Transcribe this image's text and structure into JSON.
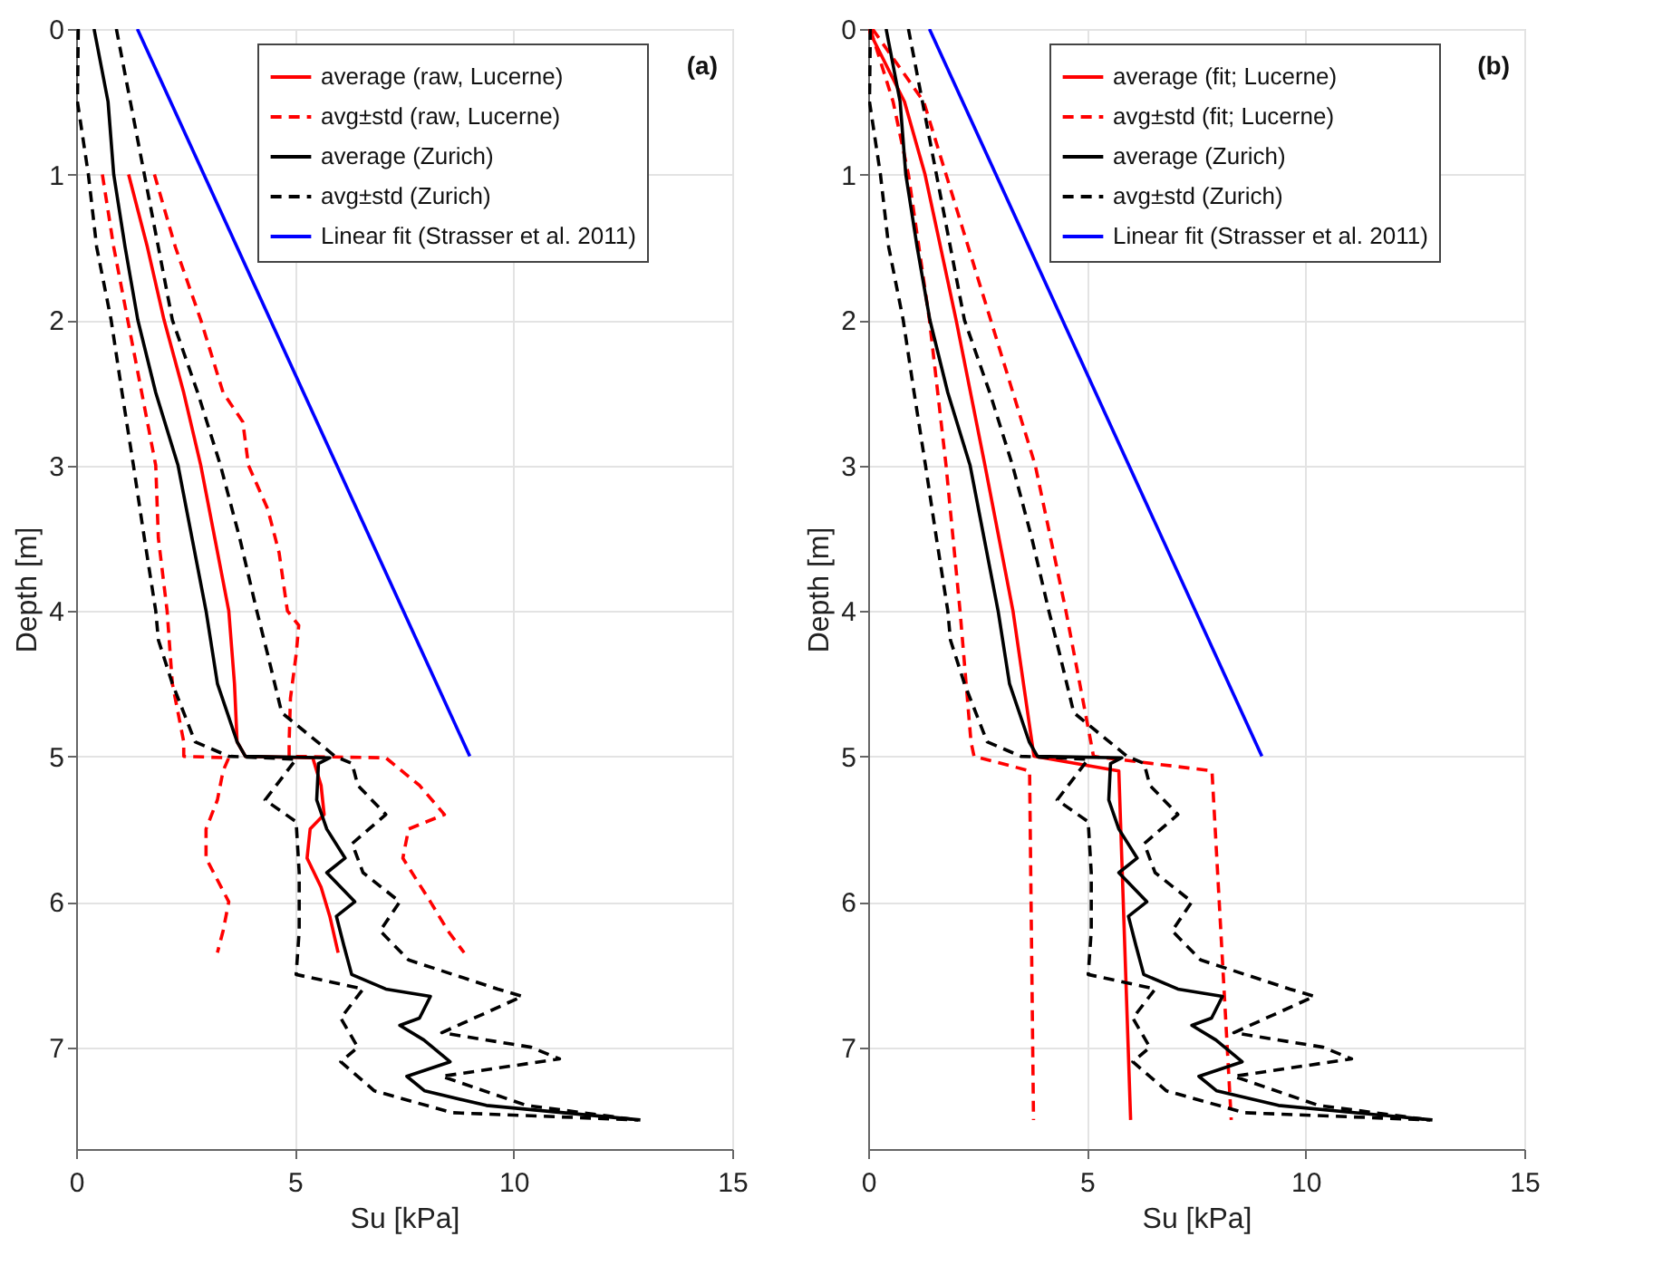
{
  "chart_data": [
    {
      "type": "line",
      "xlabel": "Su [kPa]",
      "ylabel": "Depth [m]",
      "xlim": [
        0,
        15
      ],
      "xticks": [
        0,
        5,
        10,
        15
      ],
      "ylim": [
        7.7,
        0
      ],
      "yticks": [
        0,
        1,
        2,
        3,
        4,
        5,
        6,
        7
      ],
      "grid": true,
      "legend": "top right",
      "annotations": [
        "(a)"
      ],
      "series": [
        {
          "name": "average (raw, Lucerne)",
          "color": "#ff0000",
          "line_style": "solid",
          "x": [
            1.2,
            1.63,
            2.01,
            2.46,
            2.85,
            3.17,
            3.49,
            3.62,
            3.68,
            3.87,
            5.41,
            5.6,
            5.67,
            5.35,
            5.28,
            5.6,
            5.8,
            5.99
          ],
          "values": [
            1,
            1.5,
            2,
            2.5,
            3,
            3.5,
            4,
            4.5,
            4.9,
            5.0,
            5.01,
            5.2,
            5.4,
            5.5,
            5.7,
            5.9,
            6.1,
            6.35
          ]
        },
        {
          "name": "avg±std (raw, Lucerne)",
          "color": "#ff0000",
          "line_style": "dashed",
          "x": [
            0.6,
            0.86,
            1.18,
            1.5,
            1.82,
            1.88,
            2.08,
            2.2,
            2.46,
            2.46,
            3.49,
            3.36,
            3.23,
            2.97,
            2.97,
            3.23,
            3.49,
            3.36,
            3.23,
            null,
            1.79,
            2.27,
            2.85,
            3.36,
            3.81,
            3.94,
            4.38,
            4.64,
            4.83,
            5.09,
            5.03,
            4.9,
            4.87,
            4.87,
            7.08,
            7.85,
            8.42,
            7.6,
            7.47,
            8.1,
            8.5,
            8.87
          ],
          "values": [
            1,
            1.5,
            2,
            2.5,
            3,
            3.5,
            4,
            4.5,
            4.9,
            5.0,
            5.01,
            5.1,
            5.3,
            5.5,
            5.7,
            5.85,
            6.0,
            6.2,
            6.35,
            null,
            1,
            1.5,
            2,
            2.5,
            2.7,
            3,
            3.3,
            3.6,
            4,
            4.1,
            4.3,
            4.6,
            4.9,
            5.0,
            5.01,
            5.2,
            5.4,
            5.5,
            5.7,
            6.0,
            6.2,
            6.35
          ]
        },
        {
          "name": "average (Zurich)",
          "color": "#000000",
          "line_style": "solid",
          "x": [
            0.41,
            0.73,
            0.86,
            1.12,
            1.41,
            1.82,
            2.33,
            2.65,
            2.97,
            3.23,
            3.68,
            3.87,
            5.8,
            5.54,
            5.5,
            5.73,
            6.15,
            5.73,
            6.37,
            5.95,
            6.12,
            6.3,
            7.08,
            8.1,
            7.85,
            7.4,
            7.95,
            8.55,
            7.56,
            7.97,
            9.38,
            12.9
          ],
          "values": [
            0,
            0.5,
            1,
            1.5,
            2,
            2.5,
            3,
            3.5,
            4,
            4.5,
            4.9,
            5.0,
            5.01,
            5.05,
            5.3,
            5.5,
            5.7,
            5.8,
            6.0,
            6.1,
            6.3,
            6.5,
            6.6,
            6.65,
            6.8,
            6.85,
            6.95,
            7.1,
            7.2,
            7.3,
            7.4,
            7.5
          ]
        },
        {
          "name": "avg±std (Zurich)",
          "color": "#000000",
          "line_style": "dashed",
          "x": [
            0.05,
            0.03,
            0.28,
            0.47,
            0.8,
            1.05,
            1.31,
            1.56,
            1.82,
            1.88,
            2.2,
            2.72,
            3.49,
            5.03,
            4.32,
            5.03,
            5.1,
            5.1,
            5.03,
            6.56,
            6.05,
            6.44,
            6.05,
            6.82,
            8.6,
            12.85,
            null,
            0.92,
            1.24,
            1.56,
            1.88,
            2.2,
            2.78,
            3.3,
            3.74,
            4.13,
            4.38,
            4.7,
            5.92,
            6.31,
            6.44,
            7.08,
            6.31,
            6.56,
            7.4,
            6.95,
            7.6,
            9.64,
            10.2,
            8.36,
            10.4,
            11.05,
            8.36,
            10.3,
            12.85
          ],
          "values": [
            0,
            0.5,
            1,
            1.5,
            2,
            2.5,
            3,
            3.5,
            4,
            4.2,
            4.5,
            4.9,
            5.0,
            5.02,
            5.3,
            5.45,
            5.8,
            6.2,
            6.5,
            6.6,
            6.8,
            7.0,
            7.1,
            7.3,
            7.45,
            7.5,
            null,
            0,
            0.5,
            1,
            1.5,
            2,
            2.5,
            3,
            3.5,
            4,
            4.3,
            4.7,
            5.0,
            5.05,
            5.2,
            5.4,
            5.6,
            5.8,
            6.0,
            6.2,
            6.4,
            6.6,
            6.65,
            6.9,
            7.0,
            7.08,
            7.2,
            7.4,
            7.5
          ]
        },
        {
          "name": "Linear fit (Strasser et al. 2011)",
          "color": "#0000ff",
          "line_style": "solid",
          "x": [
            1.4,
            9.0
          ],
          "values": [
            0,
            5
          ]
        }
      ]
    },
    {
      "type": "line",
      "xlabel": "Su [kPa]",
      "ylabel": "Depth [m]",
      "xlim": [
        0,
        15
      ],
      "xticks": [
        0,
        5,
        10,
        15
      ],
      "ylim": [
        7.7,
        0
      ],
      "yticks": [
        0,
        1,
        2,
        3,
        4,
        5,
        6,
        7
      ],
      "grid": true,
      "legend": "top right",
      "annotations": [
        "(b)"
      ],
      "series": [
        {
          "name": "average (fit; Lucerne)",
          "color": "#ff0000",
          "line_style": "solid",
          "x": [
            0,
            0.83,
            1.3,
            2.01,
            2.67,
            3.31,
            3.79,
            5.73,
            6.0
          ],
          "values": [
            0,
            0.5,
            1,
            2,
            3,
            4,
            5,
            5.1,
            7.5
          ]
        },
        {
          "name": "avg±std (fit; Lucerne)",
          "color": "#ff0000",
          "line_style": "dashed",
          "x": [
            0.05,
            0.57,
            0.92,
            1.4,
            1.78,
            2.1,
            2.35,
            2.42,
            3.69,
            3.78,
            null,
            0.1,
            1.27,
            1.78,
            2.8,
            3.82,
            4.52,
            5.09,
            5.15,
            7.86,
            8.3
          ],
          "values": [
            0,
            0.5,
            1,
            2,
            3,
            4,
            4.9,
            5.0,
            5.1,
            7.5,
            null,
            0,
            0.5,
            1,
            2,
            3,
            4,
            4.9,
            5.0,
            5.1,
            7.5
          ]
        },
        {
          "name": "average (Zurich)",
          "color": "#000000",
          "line_style": "solid",
          "x": [
            0.41,
            0.73,
            0.86,
            1.12,
            1.41,
            1.82,
            2.33,
            2.65,
            2.97,
            3.23,
            3.68,
            3.87,
            5.8,
            5.54,
            5.5,
            5.73,
            6.15,
            5.73,
            6.37,
            5.95,
            6.12,
            6.3,
            7.08,
            8.1,
            7.85,
            7.4,
            7.95,
            8.55,
            7.56,
            7.97,
            9.38,
            12.9
          ],
          "values": [
            0,
            0.5,
            1,
            1.5,
            2,
            2.5,
            3,
            3.5,
            4,
            4.5,
            4.9,
            5.0,
            5.01,
            5.05,
            5.3,
            5.5,
            5.7,
            5.8,
            6.0,
            6.1,
            6.3,
            6.5,
            6.6,
            6.65,
            6.8,
            6.85,
            6.95,
            7.1,
            7.2,
            7.3,
            7.4,
            7.5
          ]
        },
        {
          "name": "avg±std (Zurich)",
          "color": "#000000",
          "line_style": "dashed",
          "x": [
            0.05,
            0.03,
            0.28,
            0.47,
            0.8,
            1.05,
            1.31,
            1.56,
            1.82,
            1.88,
            2.2,
            2.72,
            3.49,
            5.03,
            4.32,
            5.03,
            5.1,
            5.1,
            5.03,
            6.56,
            6.05,
            6.44,
            6.05,
            6.82,
            8.6,
            12.85,
            null,
            0.92,
            1.24,
            1.56,
            1.88,
            2.2,
            2.78,
            3.3,
            3.74,
            4.13,
            4.38,
            4.7,
            5.92,
            6.31,
            6.44,
            7.08,
            6.31,
            6.56,
            7.4,
            6.95,
            7.6,
            9.64,
            10.2,
            8.36,
            10.4,
            11.05,
            8.36,
            10.3,
            12.85
          ],
          "values": [
            0,
            0.5,
            1,
            1.5,
            2,
            2.5,
            3,
            3.5,
            4,
            4.2,
            4.5,
            4.9,
            5.0,
            5.02,
            5.3,
            5.45,
            5.8,
            6.2,
            6.5,
            6.6,
            6.8,
            7.0,
            7.1,
            7.3,
            7.45,
            7.5,
            null,
            0,
            0.5,
            1,
            1.5,
            2,
            2.5,
            3,
            3.5,
            4,
            4.3,
            4.7,
            5.0,
            5.05,
            5.2,
            5.4,
            5.6,
            5.8,
            6.0,
            6.2,
            6.4,
            6.6,
            6.65,
            6.9,
            7.0,
            7.08,
            7.2,
            7.4,
            7.5
          ]
        },
        {
          "name": "Linear fit (Strasser et al. 2011)",
          "color": "#0000ff",
          "line_style": "solid",
          "x": [
            1.4,
            9.0
          ],
          "values": [
            0,
            5
          ]
        }
      ]
    }
  ]
}
